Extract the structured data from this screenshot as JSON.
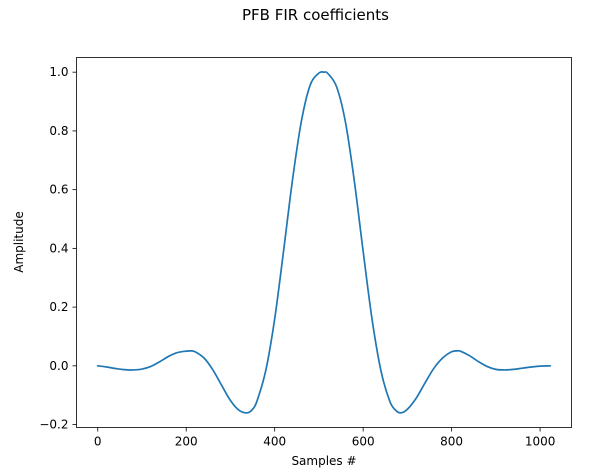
{
  "chart_data": {
    "type": "line",
    "title": "PFB FIR coefficients",
    "xlabel": "Samples #",
    "ylabel": "Amplitude",
    "xlim": [
      -48,
      1071
    ],
    "ylim": [
      -0.21,
      1.05
    ],
    "xticks": [
      0,
      200,
      400,
      600,
      800,
      1000
    ],
    "xtick_labels": [
      "0",
      "200",
      "400",
      "600",
      "800",
      "1000"
    ],
    "yticks": [
      -0.2,
      0.0,
      0.2,
      0.4,
      0.6,
      0.8,
      1.0
    ],
    "ytick_labels": [
      "−0.2",
      "0.0",
      "0.2",
      "0.4",
      "0.6",
      "0.8",
      "1.0"
    ],
    "grid": false,
    "series": [
      {
        "color": "#1f77b4",
        "x": [
          0,
          20,
          40,
          60,
          80,
          100,
          120,
          140,
          160,
          180,
          200,
          210,
          220,
          240,
          260,
          280,
          300,
          320,
          338,
          350,
          360,
          380,
          400,
          420,
          440,
          460,
          480,
          500,
          512,
          520,
          540,
          560,
          580,
          600,
          620,
          640,
          660,
          674,
          686,
          700,
          720,
          740,
          760,
          780,
          800,
          814,
          820,
          840,
          860,
          880,
          900,
          920,
          940,
          960,
          980,
          1000,
          1023
        ],
        "y": [
          0.0,
          -0.004,
          -0.009,
          -0.013,
          -0.014,
          -0.011,
          -0.002,
          0.014,
          0.032,
          0.045,
          0.05,
          0.051,
          0.048,
          0.027,
          -0.013,
          -0.066,
          -0.118,
          -0.152,
          -0.16,
          -0.148,
          -0.12,
          -0.015,
          0.16,
          0.39,
          0.63,
          0.83,
          0.955,
          0.997,
          1.0,
          0.996,
          0.95,
          0.83,
          0.63,
          0.39,
          0.16,
          -0.015,
          -0.12,
          -0.152,
          -0.16,
          -0.148,
          -0.11,
          -0.058,
          -0.008,
          0.027,
          0.048,
          0.051,
          0.05,
          0.035,
          0.015,
          -0.002,
          -0.012,
          -0.014,
          -0.012,
          -0.008,
          -0.004,
          -0.001,
          0.0
        ]
      }
    ]
  }
}
